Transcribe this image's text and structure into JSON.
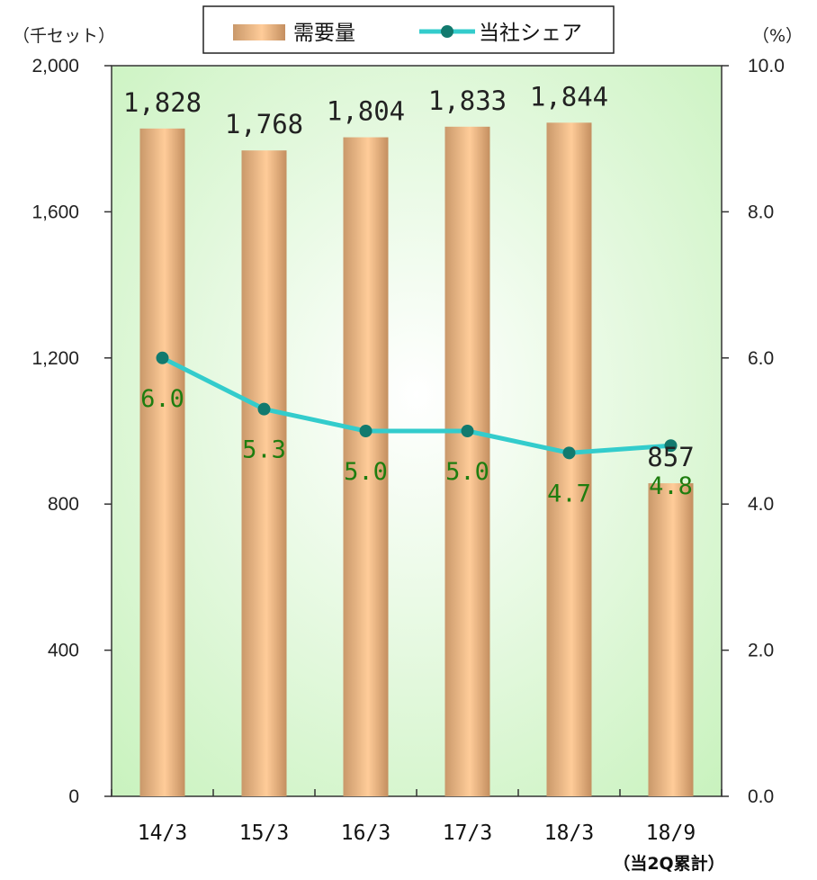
{
  "chart_data": {
    "type": "bar",
    "categories": [
      "14/3",
      "15/3",
      "16/3",
      "17/3",
      "18/3",
      "18/9"
    ],
    "category_sublabels": [
      "",
      "",
      "",
      "",
      "",
      "（当2Q累計）"
    ],
    "left_axis": {
      "unit_label": "（千セット）",
      "ylim": [
        0,
        2000
      ],
      "ticks": [
        "0",
        "400",
        "800",
        "1,200",
        "1,600",
        "2,000"
      ],
      "tick_values": [
        0,
        400,
        800,
        1200,
        1600,
        2000
      ]
    },
    "right_axis": {
      "unit_label": "（%）",
      "ylim": [
        0,
        10
      ],
      "ticks": [
        "0.0",
        "2.0",
        "4.0",
        "6.0",
        "8.0",
        "10.0"
      ],
      "tick_values": [
        0,
        2,
        4,
        6,
        8,
        10
      ]
    },
    "series": [
      {
        "name": "需要量",
        "type": "bar",
        "axis": "left",
        "values": [
          1828,
          1768,
          1804,
          1833,
          1844,
          857
        ],
        "labels": [
          "1,828",
          "1,768",
          "1,804",
          "1,833",
          "1,844",
          "857"
        ],
        "color": "#e8b48a"
      },
      {
        "name": "当社シェア",
        "type": "line",
        "axis": "right",
        "values": [
          6.0,
          5.3,
          5.0,
          5.0,
          4.7,
          4.8
        ],
        "labels": [
          "6.0",
          "5.3",
          "5.0",
          "5.0",
          "4.7",
          "4.8"
        ],
        "color": "#33cccc",
        "marker_color": "#127a6e"
      }
    ],
    "legend_position": "top",
    "grid": false,
    "colors": {
      "plot_bg_edge": "#c8f2bd",
      "plot_bg_center": "#ffffff",
      "share_label": "#1e7d0f"
    }
  }
}
